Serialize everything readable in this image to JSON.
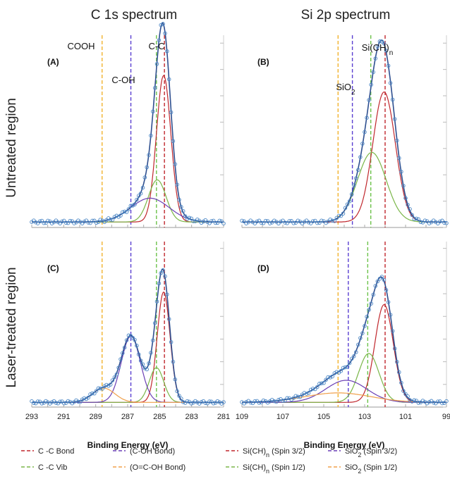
{
  "figure": {
    "columns": [
      "C 1s spectrum",
      "Si 2p spectrum"
    ],
    "rows": [
      "Untreated  region",
      "Laser-treated  region"
    ]
  },
  "colors": {
    "data_marker": "#4a86c5",
    "envelope": "#2f4f8f",
    "red": "#c0272d",
    "purple": "#6a3fb5",
    "green": "#7ab648",
    "orange": "#f0a04b",
    "peak_line_red": "#c0272d",
    "peak_line_purple": "#5a3fd1",
    "peak_line_green": "#6cc24a",
    "peak_line_orange": "#f2b32e",
    "axis": "#999999"
  },
  "chart_data": [
    {
      "type": "line",
      "panel": "(A)",
      "xlabel": "",
      "xlim": [
        293,
        281
      ],
      "ylim": [
        0,
        1.05
      ],
      "xticks": [],
      "reference_lines": [
        {
          "label": "COOH",
          "x": 288.6,
          "color": "orange"
        },
        {
          "label": "C-OH",
          "x": 286.8,
          "color": "purple"
        },
        {
          "label": "",
          "x": 285.2,
          "color": "green"
        },
        {
          "label": "C-C",
          "x": 284.7,
          "color": "red"
        }
      ],
      "top_labels": [
        {
          "text": "C-C",
          "x": 285.1
        }
      ],
      "baseline": 0.03,
      "components": [
        {
          "center": 284.75,
          "sigma": 0.45,
          "amp": 0.8,
          "color": "red"
        },
        {
          "center": 285.15,
          "sigma": 0.55,
          "amp": 0.23,
          "color": "green"
        },
        {
          "center": 285.6,
          "sigma": 1.2,
          "amp": 0.13,
          "color": "purple"
        }
      ]
    },
    {
      "type": "line",
      "panel": "(B)",
      "xlabel": "",
      "xlim": [
        109,
        99
      ],
      "ylim": [
        0,
        1.05
      ],
      "xticks": [],
      "reference_lines": [
        {
          "label": "SiO",
          "sub": "2",
          "x": 104.3,
          "color": "orange"
        },
        {
          "label": "",
          "x": 103.6,
          "color": "purple"
        },
        {
          "label": "",
          "x": 102.7,
          "color": "green"
        },
        {
          "label": "Si(CH)",
          "sub": "n",
          "x": 102.0,
          "color": "red"
        }
      ],
      "baseline": 0.03,
      "components": [
        {
          "center": 102.05,
          "sigma": 0.55,
          "amp": 0.71,
          "color": "red"
        },
        {
          "center": 102.65,
          "sigma": 0.7,
          "amp": 0.38,
          "color": "green"
        }
      ]
    },
    {
      "type": "line",
      "panel": "(C)",
      "xlabel": "Binding Energy (eV)",
      "xlim": [
        293,
        281
      ],
      "ylim": [
        0,
        1.05
      ],
      "xticks": [
        293,
        291,
        289,
        287,
        285,
        283,
        281
      ],
      "reference_lines": [
        {
          "label": "",
          "x": 288.6,
          "color": "orange"
        },
        {
          "label": "",
          "x": 286.8,
          "color": "purple"
        },
        {
          "label": "",
          "x": 285.2,
          "color": "green"
        },
        {
          "label": "",
          "x": 284.7,
          "color": "red"
        }
      ],
      "baseline": 0.03,
      "components": [
        {
          "center": 284.75,
          "sigma": 0.4,
          "amp": 0.7,
          "color": "red"
        },
        {
          "center": 285.2,
          "sigma": 0.45,
          "amp": 0.22,
          "color": "green"
        },
        {
          "center": 286.8,
          "sigma": 0.6,
          "amp": 0.42,
          "color": "purple"
        },
        {
          "center": 288.5,
          "sigma": 0.7,
          "amp": 0.09,
          "color": "orange"
        }
      ]
    },
    {
      "type": "line",
      "panel": "(D)",
      "xlabel": "Binding Energy (eV)",
      "xlim": [
        109,
        99
      ],
      "ylim": [
        0,
        1.05
      ],
      "xticks": [
        109,
        107,
        105,
        103,
        101,
        99
      ],
      "reference_lines": [
        {
          "label": "",
          "x": 104.3,
          "color": "orange"
        },
        {
          "label": "",
          "x": 103.8,
          "color": "purple"
        },
        {
          "label": "",
          "x": 102.85,
          "color": "green"
        },
        {
          "label": "",
          "x": 102.0,
          "color": "red"
        }
      ],
      "baseline": 0.03,
      "components": [
        {
          "center": 102.05,
          "sigma": 0.45,
          "amp": 0.62,
          "color": "red"
        },
        {
          "center": 102.8,
          "sigma": 0.5,
          "amp": 0.31,
          "color": "green"
        },
        {
          "center": 103.9,
          "sigma": 1.0,
          "amp": 0.14,
          "color": "purple"
        },
        {
          "center": 104.3,
          "sigma": 1.6,
          "amp": 0.06,
          "color": "orange"
        }
      ]
    }
  ],
  "legend": [
    {
      "text": "C -C Bond",
      "color": "red"
    },
    {
      "text": "(C-OH Bond)",
      "color": "purple"
    },
    {
      "text": "Si(CH)",
      "sub": "n",
      "rest": " (Spin 3/2)",
      "color": "red"
    },
    {
      "text": "SiO",
      "sub": "2",
      "rest": " (Spin 3/2)",
      "color": "purple"
    },
    {
      "text": "C -C Vib",
      "color": "green"
    },
    {
      "text": "(O=C-OH Bond)",
      "color": "orange"
    },
    {
      "text": "Si(CH)",
      "sub": "n",
      "rest": " (Spin 1/2)",
      "color": "green"
    },
    {
      "text": "SiO",
      "sub": "2",
      "rest": " (Spin 1/2)",
      "color": "orange"
    }
  ]
}
